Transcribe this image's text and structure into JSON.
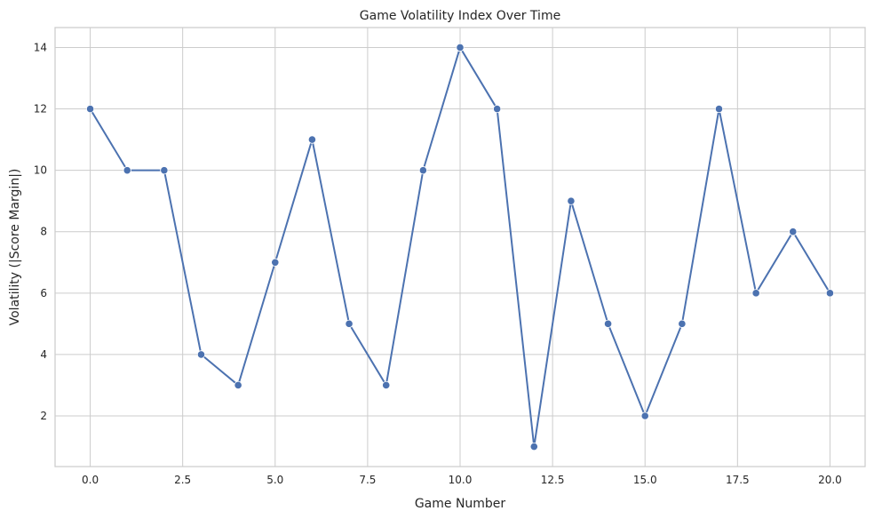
{
  "chart_data": {
    "type": "line",
    "title": "Game Volatility Index Over Time",
    "xlabel": "Game Number",
    "ylabel": "Volatility (|Score Margin|)",
    "x": [
      0,
      1,
      2,
      3,
      4,
      5,
      6,
      7,
      8,
      9,
      10,
      11,
      12,
      13,
      14,
      15,
      16,
      17,
      18,
      19,
      20
    ],
    "series": [
      {
        "values": [
          12,
          10,
          10,
          4,
          3,
          7,
          11,
          5,
          3,
          10,
          14,
          12,
          1,
          9,
          5,
          2,
          5,
          12,
          6,
          8,
          6
        ],
        "color": "#4c72b0",
        "marker": "circle"
      }
    ],
    "xlim": [
      -0.95,
      20.95
    ],
    "ylim": [
      0.35,
      14.65
    ],
    "xticks": [
      "0.0",
      "2.5",
      "5.0",
      "7.5",
      "10.0",
      "12.5",
      "15.0",
      "17.5",
      "20.0"
    ],
    "yticks": [
      "2",
      "4",
      "6",
      "8",
      "10",
      "12",
      "14"
    ],
    "grid": true,
    "colors": {
      "background": "#ffffff",
      "grid": "#cccccc",
      "spine": "#cccccc",
      "text": "#262626"
    }
  }
}
